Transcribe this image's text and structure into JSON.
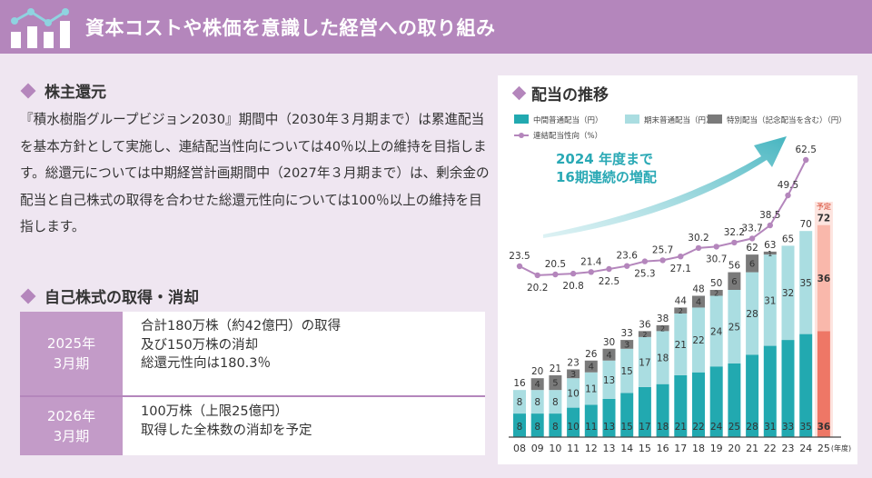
{
  "header": {
    "title": "資本コストや株価を意識した経営への取り組み",
    "icon": "chart-bars-line-icon"
  },
  "shareholder_returns": {
    "heading": "株主還元",
    "paragraph": "『積水樹脂グループビジョン2030』期間中（2030年３月期まで）は累進配当を基本方針として実施し、連結配当性向については40％以上の維持を目指します。総還元については中期経営計画期間中（2027年３月期まで）は、剰余金の配当と自己株式の取得を合わせた総還元性向については100％以上の維持を目指します。"
  },
  "buyback": {
    "heading": "自己株式の取得・消却",
    "rows": [
      {
        "year": "2025年",
        "period": "3月期",
        "lines": [
          "合計180万株（約42億円）の取得",
          "及び150万株の消却",
          "総還元性向は180.3％"
        ]
      },
      {
        "year": "2026年",
        "period": "3月期",
        "lines": [
          "100万株（上限25億円）",
          "取得した全株数の消却を予定"
        ]
      }
    ]
  },
  "chart_data": {
    "type": "bar",
    "title": "配当の推移",
    "categories": [
      "08",
      "09",
      "10",
      "11",
      "12",
      "13",
      "14",
      "15",
      "16",
      "17",
      "18",
      "19",
      "20",
      "21",
      "22",
      "23",
      "24",
      "25"
    ],
    "x_unit": "(年度)",
    "stacked": true,
    "series": [
      {
        "name": "中間普通配当（円）",
        "color": "#22a9b0",
        "values": [
          8,
          8,
          8,
          10,
          11,
          13,
          15,
          17,
          18,
          21,
          22,
          24,
          25,
          28,
          31,
          33,
          35,
          36
        ]
      },
      {
        "name": "期末普通配当（円）",
        "color": "#aadde1",
        "values": [
          8,
          8,
          8,
          10,
          11,
          13,
          15,
          17,
          18,
          21,
          22,
          24,
          25,
          28,
          31,
          32,
          35,
          36
        ]
      },
      {
        "name": "特別配当（記念配当を含む）（円）",
        "color": "#7a7a7a",
        "values": [
          0,
          4,
          5,
          3,
          4,
          4,
          3,
          2,
          2,
          2,
          4,
          2,
          6,
          6,
          1,
          0,
          0,
          0
        ]
      }
    ],
    "totals": [
      16,
      20,
      21,
      23,
      26,
      30,
      33,
      36,
      38,
      44,
      48,
      50,
      56,
      62,
      63,
      65,
      70,
      72
    ],
    "forecast": {
      "category": "25",
      "label": "予定",
      "colors": {
        "interim": "#ee7766",
        "year_end": "#f9b8ab",
        "band": "#fde4df"
      }
    },
    "line_series": {
      "name": "連結配当性向（%）",
      "color": "#b486bc",
      "values": [
        23.5,
        20.2,
        20.5,
        20.8,
        21.4,
        22.5,
        23.6,
        25.3,
        25.7,
        27.1,
        30.2,
        30.7,
        32.2,
        33.7,
        38.5,
        49.5,
        62.5
      ]
    },
    "annotation": [
      "2024 年度まで",
      "16期連続の増配"
    ],
    "annotation_color": "#2aa9b5",
    "grid": false,
    "legend": "top"
  }
}
